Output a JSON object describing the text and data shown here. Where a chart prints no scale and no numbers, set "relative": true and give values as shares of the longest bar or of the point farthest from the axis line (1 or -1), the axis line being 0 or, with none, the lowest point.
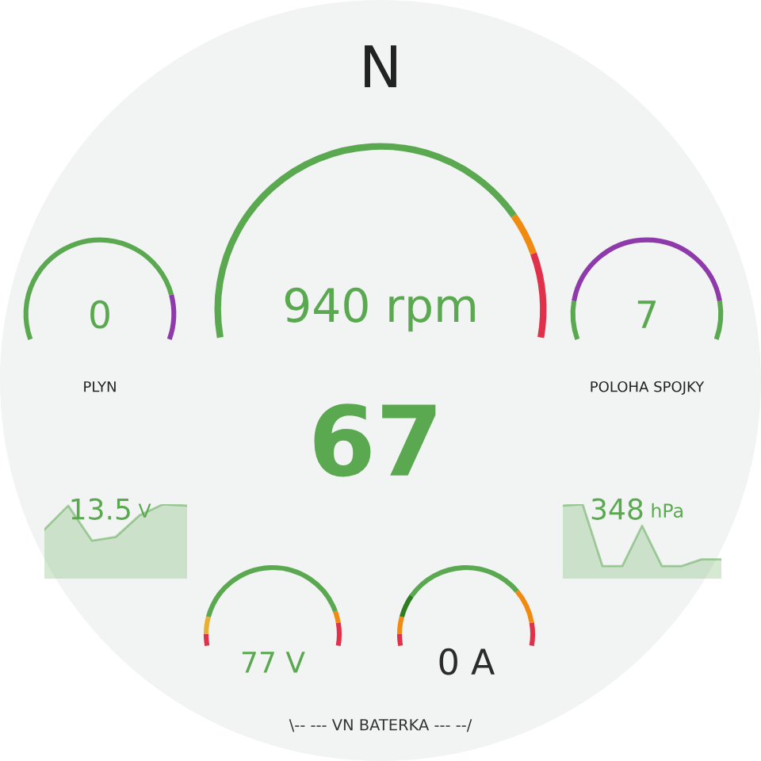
{
  "chart_data": [
    {
      "type": "other",
      "annotations": [
        "N",
        "67",
        "\\-- --- VN BATERKA --- --/"
      ]
    },
    {
      "type": "other",
      "values": [
        940
      ],
      "value_labels": [
        "940 rpm"
      ],
      "color": "#5aa84f"
    },
    {
      "type": "other",
      "title": "PLYN",
      "values": [
        0
      ],
      "value_labels": [
        "0"
      ],
      "color": "#5aa84f"
    },
    {
      "type": "other",
      "title": "POLOHA SPOJKY",
      "values": [
        7
      ],
      "value_labels": [
        "7"
      ],
      "color": "#5aa84f"
    },
    {
      "type": "area",
      "relative": true,
      "categories": [
        null,
        null,
        null,
        null,
        null,
        null,
        null
      ],
      "values": [
        0.66,
        0.98,
        0.51,
        0.56,
        0.85,
        1,
        0.98
      ],
      "color": "#5aa84f",
      "annotations": [
        "13.5 V"
      ]
    },
    {
      "type": "area",
      "relative": true,
      "categories": [
        null,
        null,
        null,
        null,
        null,
        null,
        null,
        null,
        null
      ],
      "values": [
        0.98,
        1,
        0.17,
        0.17,
        0.71,
        0.17,
        0.17,
        0.26,
        0.26
      ],
      "color": "#5aa84f",
      "annotations": [
        "348 hPa"
      ]
    },
    {
      "type": "other",
      "values": [
        77
      ],
      "value_labels": [
        "77 V"
      ],
      "color": "#5aa84f"
    },
    {
      "type": "other",
      "values": [
        0
      ],
      "value_labels": [
        "0 A"
      ],
      "color": "#2b2b2b"
    }
  ]
}
